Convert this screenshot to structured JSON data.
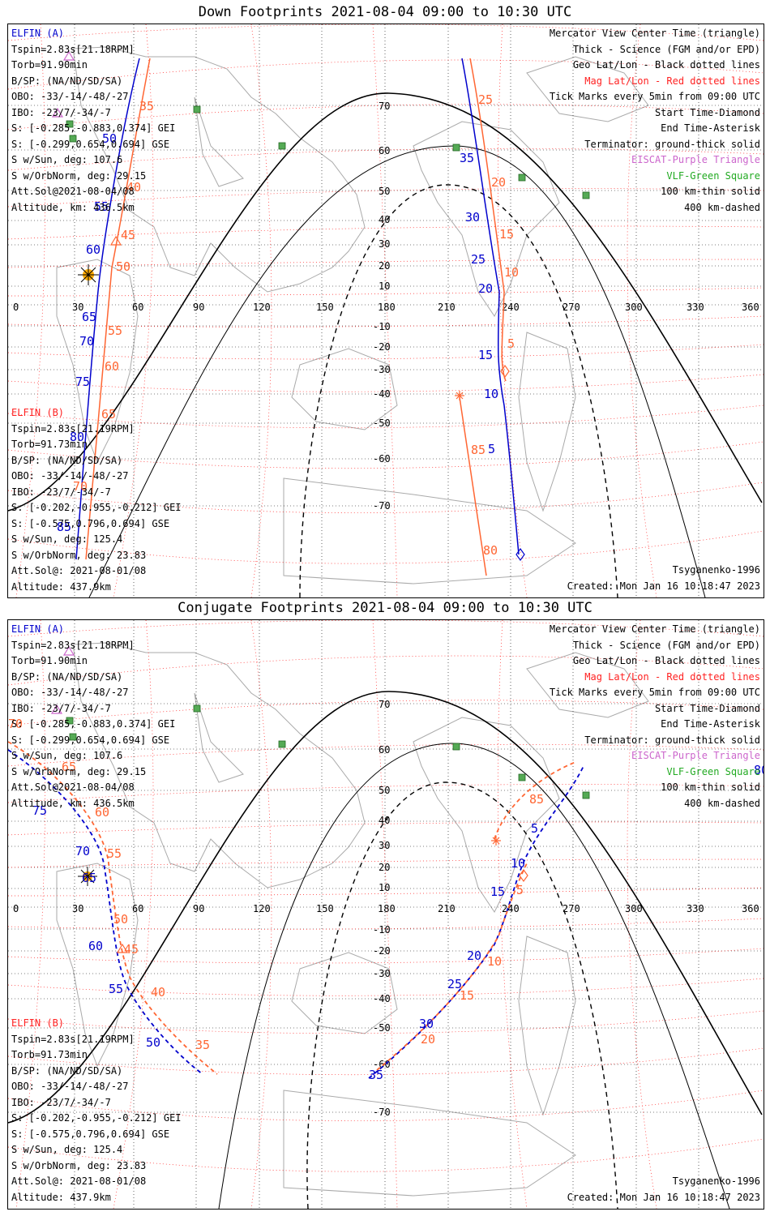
{
  "panels": [
    {
      "title": "Down Footprints 2021-08-04 09:00 to 10:30 UTC",
      "elfin_a": {
        "header": "ELFIN (A)",
        "lines": [
          "Tspin=2.83s[21.18RPM]",
          "Torb=91.90min",
          "B/SP: (NA/ND/SD/SA)",
          "OBO: -33/-14/-48/-27",
          "IBO: -23/7/-34/-7",
          "S: [-0.285,-0.883,0.374] GEI",
          "S: [-0.299,0.654,0.694] GSE",
          "S w/Sun, deg: 107.6",
          "S w/OrbNorm, deg: 29.15",
          "Att.Sol@2021-08-04/08",
          "Altitude, km: 436.5km"
        ]
      },
      "elfin_b": {
        "header": "ELFIN (B)",
        "lines": [
          "Tspin=2.83s[21.19RPM]",
          "Torb=91.73min",
          "B/SP: (NA/ND/SD/SA)",
          "OBO: -33/-14/-48/-27",
          "IBO: -23/7/-34/-7",
          "S: [-0.202,-0.955,-0.212] GEI",
          "S: [-0.575,0.796,0.694] GSE",
          "S w/Sun, deg: 125.4",
          "S w/OrbNorm, deg: 23.83",
          "Att.Sol@: 2021-08-01/08",
          "Altitude: 437.9km"
        ]
      },
      "model": "Tsyganenko-1996",
      "created": "Created: Mon Jan 16 10:18:47 2023"
    },
    {
      "title": "Conjugate Footprints 2021-08-04 09:00 to 10:30 UTC",
      "elfin_a": {
        "header": "ELFIN (A)",
        "lines": [
          "Tspin=2.83s[21.18RPM]",
          "Torb=91.90min",
          "B/SP: (NA/ND/SD/SA)",
          "OBO: -33/-14/-48/-27",
          "IBO: -23/7/-34/-7",
          "S: [-0.285,-0.883,0.374] GEI",
          "S: [-0.299,0.654,0.694] GSE",
          "S w/Sun, deg: 107.6",
          "S w/OrbNorm, deg: 29.15",
          "Att.Sol@2021-08-04/08",
          "Altitude, km: 436.5km"
        ]
      },
      "elfin_b": {
        "header": "ELFIN (B)",
        "lines": [
          "Tspin=2.83s[21.19RPM]",
          "Torb=91.73min",
          "B/SP: (NA/ND/SD/SA)",
          "OBO: -33/-14/-48/-27",
          "IBO: -23/7/-34/-7",
          "S: [-0.202,-0.955,-0.212] GEI",
          "S: [-0.575,0.796,0.694] GSE",
          "S w/Sun, deg: 125.4",
          "S w/OrbNorm, deg: 23.83",
          "Att.Sol@: 2021-08-01/08",
          "Altitude: 437.9km"
        ]
      },
      "model": "Tsyganenko-1996",
      "created": "Created: Mon Jan 16 10:18:47 2023"
    }
  ],
  "legend": {
    "black": [
      "Mercator View Center Time (triangle)",
      "Thick - Science (FGM and/or EPD)",
      "Geo Lat/Lon - Black dotted lines"
    ],
    "red": "Mag Lat/Lon - Red dotted lines",
    "black2": [
      "Tick Marks every 5min from 09:00 UTC",
      "Start Time-Diamond",
      "End Time-Asterisk",
      "Terminator: ground-thick solid"
    ],
    "purple": "EISCAT-Purple Triangle",
    "green": "VLF-Green Square",
    "black3": [
      "100 km-thin solid",
      "400 km-dashed"
    ]
  },
  "axes": {
    "lon_ticks": [
      "0",
      "30",
      "60",
      "90",
      "120",
      "150",
      "180",
      "210",
      "240",
      "270",
      "300",
      "330",
      "360"
    ],
    "lat_ticks": [
      "70",
      "60",
      "50",
      "40",
      "30",
      "20",
      "10",
      "-10",
      "-20",
      "-30",
      "-40",
      "-50",
      "-60",
      "-70"
    ]
  },
  "tick_labels": {
    "down_a": [
      "50",
      "55",
      "60",
      "65",
      "70",
      "75",
      "80",
      "85",
      "35",
      "30",
      "25",
      "20",
      "15",
      "10",
      "5"
    ],
    "down_b": [
      "35",
      "40",
      "45",
      "50",
      "55",
      "60",
      "65",
      "70",
      "25",
      "20",
      "15",
      "10",
      "5",
      "85",
      "80"
    ],
    "conj_a": [
      "75",
      "70",
      "65",
      "60",
      "55",
      "50",
      "80",
      "5",
      "10",
      "15",
      "20",
      "25",
      "30",
      "35"
    ],
    "conj_b": [
      "70",
      "65",
      "60",
      "55",
      "50",
      "45",
      "40",
      "35",
      "85",
      "5",
      "10",
      "15",
      "20"
    ]
  },
  "colors": {
    "blue": "#0000cc",
    "red": "#ff2222",
    "orange": "#ff6633",
    "purple": "#cc66cc",
    "green": "#22aa22",
    "land": "#aaaaaa"
  }
}
